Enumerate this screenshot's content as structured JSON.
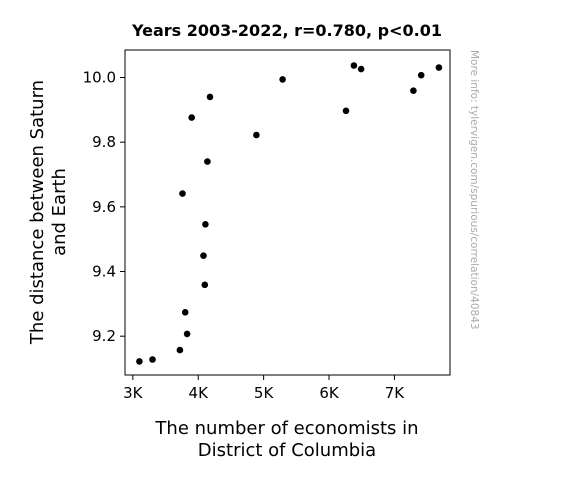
{
  "chart_data": {
    "type": "scatter",
    "title": "Years 2003-2022, r=0.780, p<0.01",
    "xlabel": [
      "The number of economists in",
      "District of Columbia"
    ],
    "ylabel": [
      "The distance between Saturn",
      "and Earth"
    ],
    "xlim": [
      2880,
      7850
    ],
    "ylim": [
      9.08,
      10.085
    ],
    "x_ticks": [
      {
        "value": 3000,
        "label": "3K"
      },
      {
        "value": 4000,
        "label": "4K"
      },
      {
        "value": 5000,
        "label": "5K"
      },
      {
        "value": 6000,
        "label": "6K"
      },
      {
        "value": 7000,
        "label": "7K"
      }
    ],
    "y_ticks": [
      {
        "value": 9.2,
        "label": "9.2"
      },
      {
        "value": 9.4,
        "label": "9.4"
      },
      {
        "value": 9.6,
        "label": "9.6"
      },
      {
        "value": 9.8,
        "label": "9.8"
      },
      {
        "value": 10.0,
        "label": "10.0"
      }
    ],
    "grid": false,
    "marker_color": "#000000",
    "points": [
      {
        "x": 3100,
        "y": 9.122
      },
      {
        "x": 3300,
        "y": 9.128
      },
      {
        "x": 3720,
        "y": 9.157
      },
      {
        "x": 3830,
        "y": 9.207
      },
      {
        "x": 3800,
        "y": 9.274
      },
      {
        "x": 4100,
        "y": 9.359
      },
      {
        "x": 4080,
        "y": 9.449
      },
      {
        "x": 4110,
        "y": 9.546
      },
      {
        "x": 3760,
        "y": 9.641
      },
      {
        "x": 4140,
        "y": 9.74
      },
      {
        "x": 4890,
        "y": 9.822
      },
      {
        "x": 3900,
        "y": 9.876
      },
      {
        "x": 6260,
        "y": 9.897
      },
      {
        "x": 4180,
        "y": 9.94
      },
      {
        "x": 7290,
        "y": 9.959
      },
      {
        "x": 5290,
        "y": 9.994
      },
      {
        "x": 7410,
        "y": 10.007
      },
      {
        "x": 6490,
        "y": 10.026
      },
      {
        "x": 7680,
        "y": 10.031
      },
      {
        "x": 6380,
        "y": 10.037
      }
    ]
  },
  "watermark": "More info: tylervigen.com/spurious/correlation/40843"
}
